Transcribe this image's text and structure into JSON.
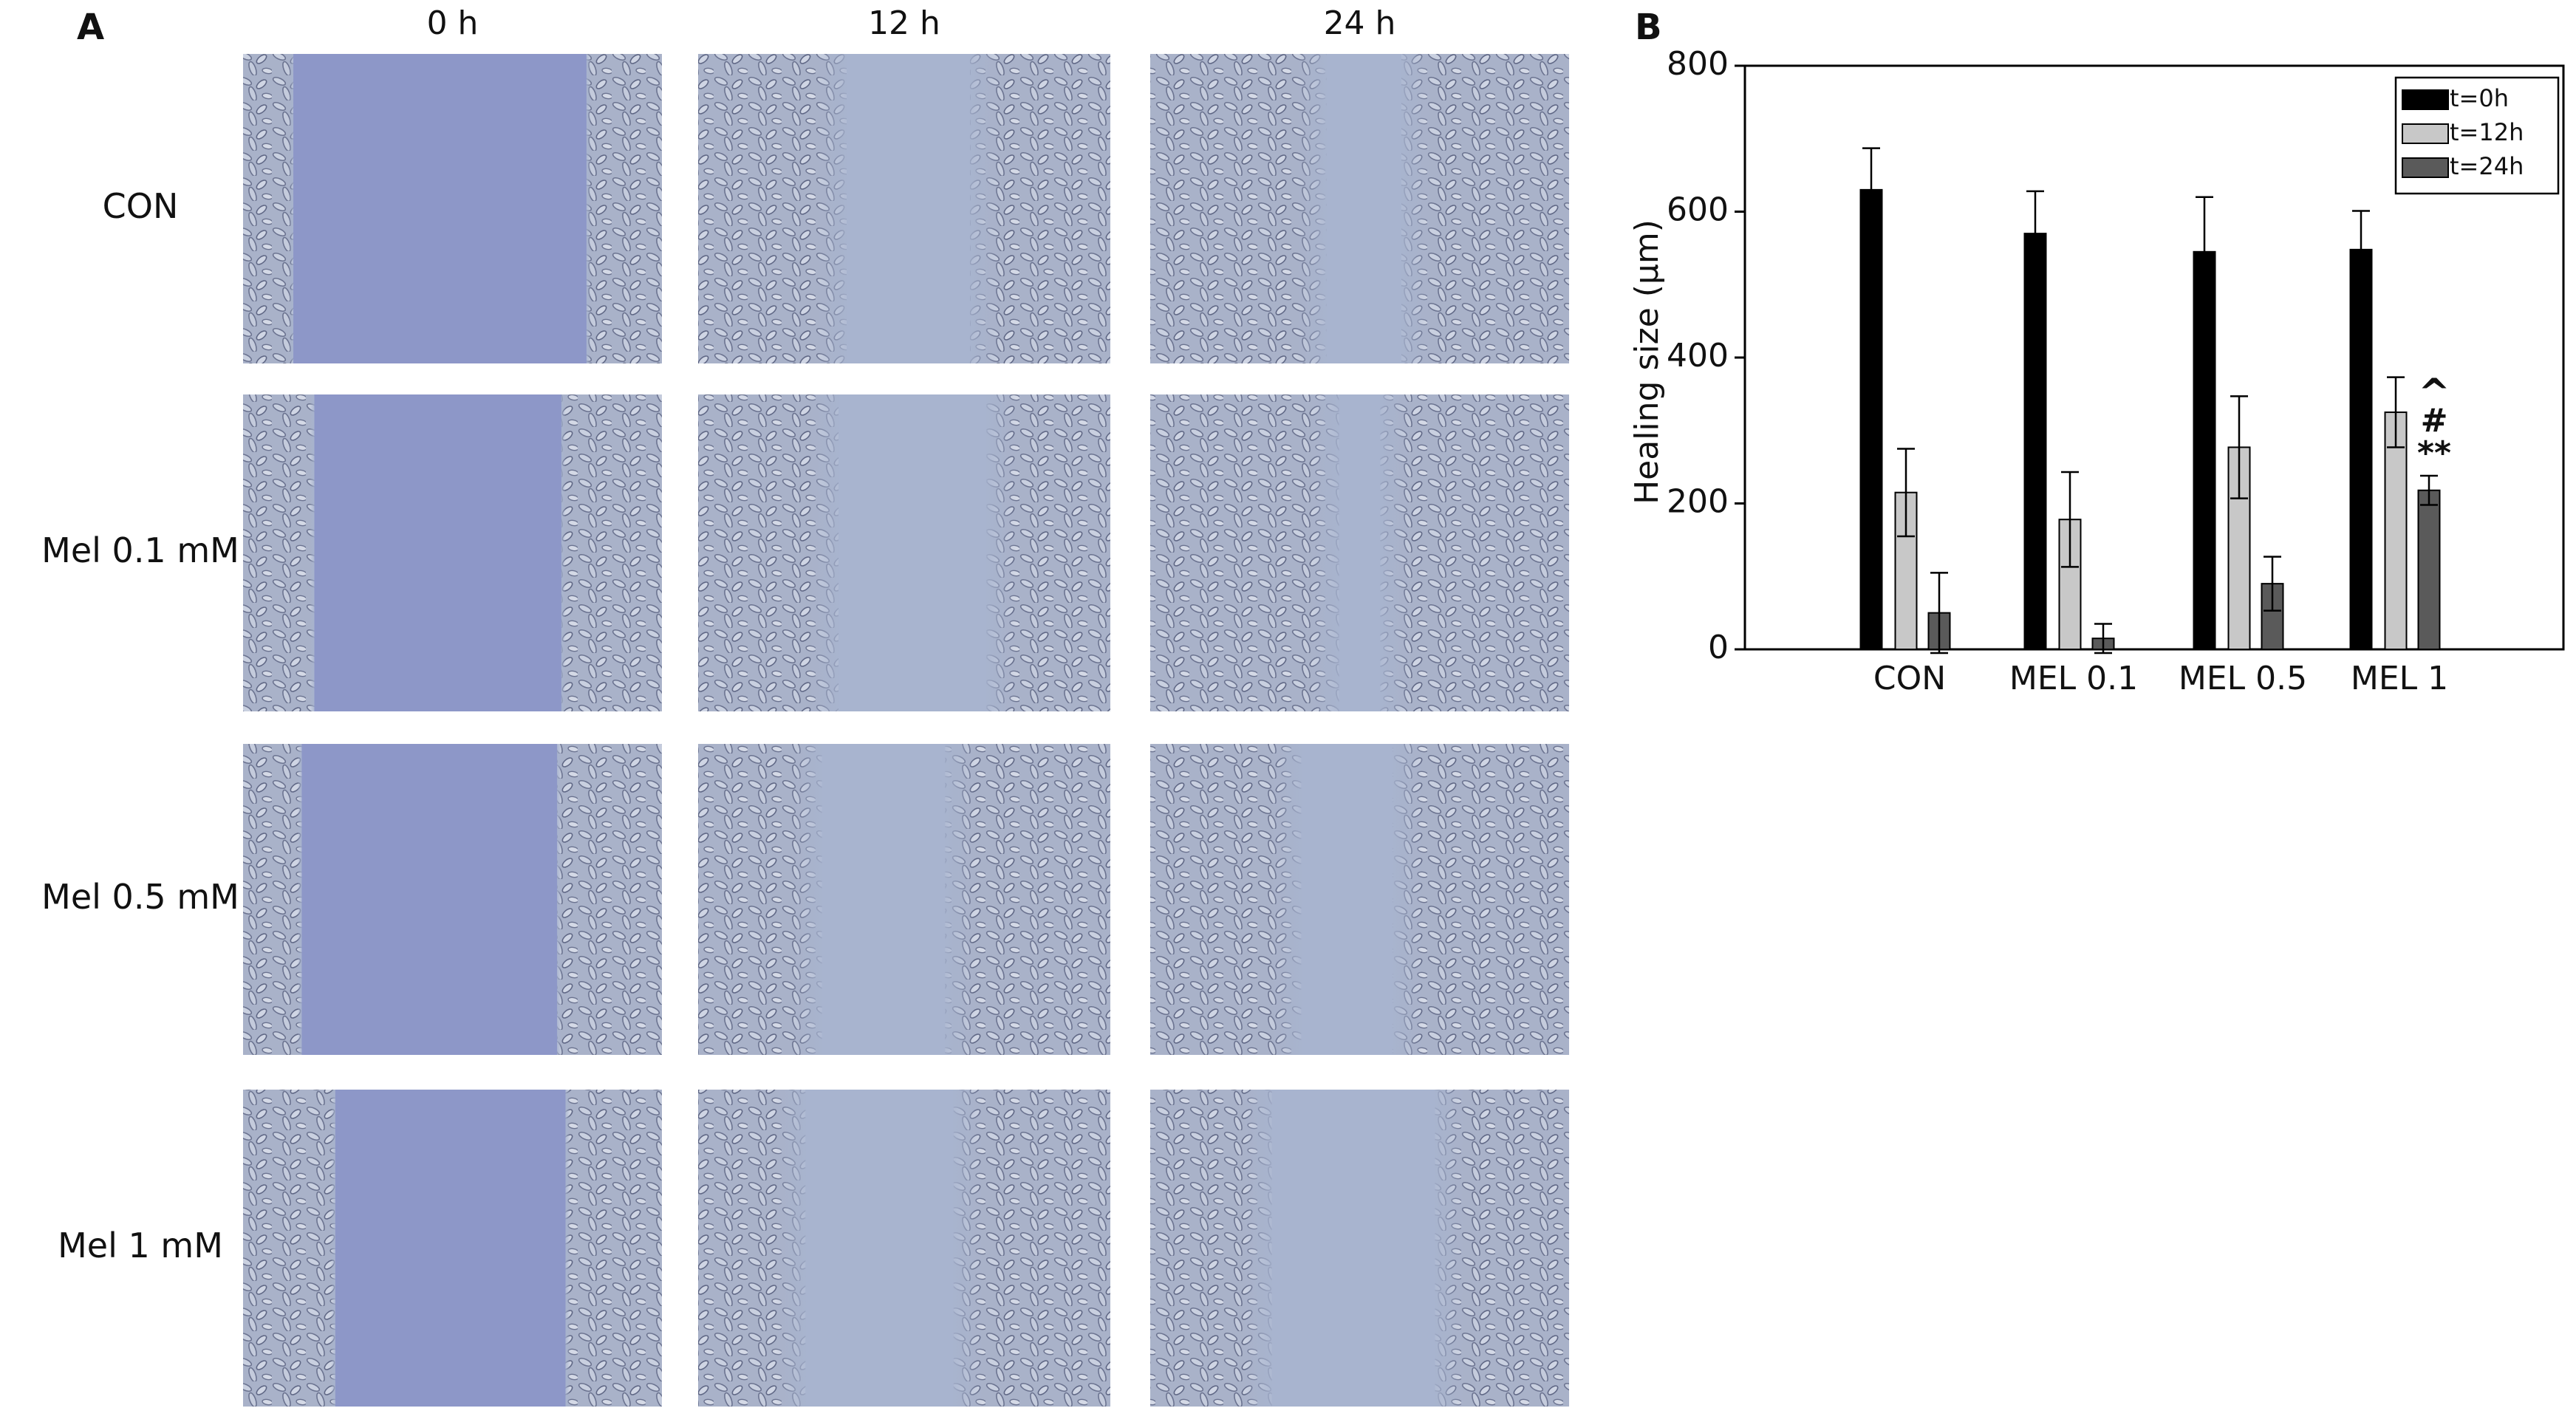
{
  "panel_a": {
    "label": "A",
    "columns": [
      "0 h",
      "12 h",
      "24 h"
    ],
    "rows": [
      "CON",
      "Mel 0.1 mM",
      "Mel 0.5 mM",
      "Mel 1 mM"
    ]
  },
  "chart_data": {
    "type": "bar",
    "panel_label": "B",
    "y_label": "Healing size (µm)",
    "categories": [
      "CON",
      "MEL 0.1",
      "MEL 0.5",
      "MEL 1"
    ],
    "series": [
      {
        "name": "t=0h",
        "color": "#000000",
        "values": [
          630,
          570,
          545,
          548
        ],
        "errors": [
          57,
          58,
          75,
          53
        ]
      },
      {
        "name": "t=12h",
        "color": "#c8c8c8",
        "values": [
          215,
          178,
          277,
          325
        ],
        "errors": [
          60,
          65,
          70,
          48
        ]
      },
      {
        "name": "t=24h",
        "color": "#5a5a5a",
        "values": [
          50,
          15,
          90,
          218
        ],
        "errors": [
          55,
          20,
          37,
          20
        ]
      }
    ],
    "annotations": [
      "^",
      "#",
      "**"
    ],
    "ylim": [
      0,
      800
    ],
    "yticks": [
      0,
      200,
      400,
      600,
      800
    ],
    "legend_position": "upper right"
  }
}
